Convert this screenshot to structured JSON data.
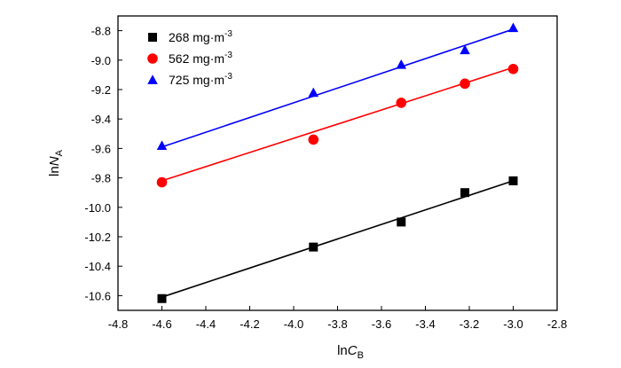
{
  "chart_data": {
    "type": "scatter",
    "xlabel": {
      "main": "ln",
      "italic": "C",
      "sub": "B"
    },
    "ylabel": {
      "main": "ln",
      "italic": "N",
      "sub": "A"
    },
    "xlim": [
      -4.8,
      -2.8
    ],
    "ylim": [
      -10.7,
      -8.7
    ],
    "x_ticks": [
      -4.8,
      -4.6,
      -4.4,
      -4.2,
      -4.0,
      -3.8,
      -3.6,
      -3.4,
      -3.2,
      -3.0,
      -2.8
    ],
    "x_tick_labels": [
      "-4.8",
      "-4.6",
      "-4.4",
      "-4.2",
      "-4.0",
      "-3.8",
      "-3.6",
      "-3.4",
      "-3.2",
      "-3.0",
      "-2.8"
    ],
    "y_ticks": [
      -10.6,
      -10.4,
      -10.2,
      -10.0,
      -9.8,
      -9.6,
      -9.4,
      -9.2,
      -9.0,
      -8.8
    ],
    "y_tick_labels": [
      "-10.6",
      "-10.4",
      "-10.2",
      "-10.0",
      "-9.8",
      "-9.6",
      "-9.4",
      "-9.2",
      "-9.0",
      "-8.8"
    ],
    "grid": false,
    "legend_position": "top-left",
    "series": [
      {
        "name": "268 mg·m",
        "name_sup": "-3",
        "marker": "square",
        "color": "#000000",
        "x": [
          -4.6,
          -3.91,
          -3.51,
          -3.22,
          -3.0
        ],
        "y": [
          -10.62,
          -10.27,
          -10.1,
          -9.9,
          -9.82
        ],
        "fit": {
          "x": [
            -4.6,
            -3.0
          ],
          "y": [
            -10.61,
            -9.82
          ]
        }
      },
      {
        "name": "562 mg·m",
        "name_sup": "-3",
        "marker": "circle",
        "color": "#ff0000",
        "x": [
          -4.6,
          -3.91,
          -3.51,
          -3.22,
          -3.0
        ],
        "y": [
          -9.83,
          -9.54,
          -9.29,
          -9.16,
          -9.06
        ],
        "fit": {
          "x": [
            -4.6,
            -3.0
          ],
          "y": [
            -9.82,
            -9.05
          ]
        }
      },
      {
        "name": "725 mg·m",
        "name_sup": "-3",
        "marker": "triangle",
        "color": "#0000ff",
        "x": [
          -4.6,
          -3.91,
          -3.51,
          -3.22,
          -3.0
        ],
        "y": [
          -9.58,
          -9.22,
          -9.03,
          -8.93,
          -8.78
        ],
        "fit": {
          "x": [
            -4.6,
            -3.0
          ],
          "y": [
            -9.59,
            -8.79
          ]
        }
      }
    ]
  }
}
